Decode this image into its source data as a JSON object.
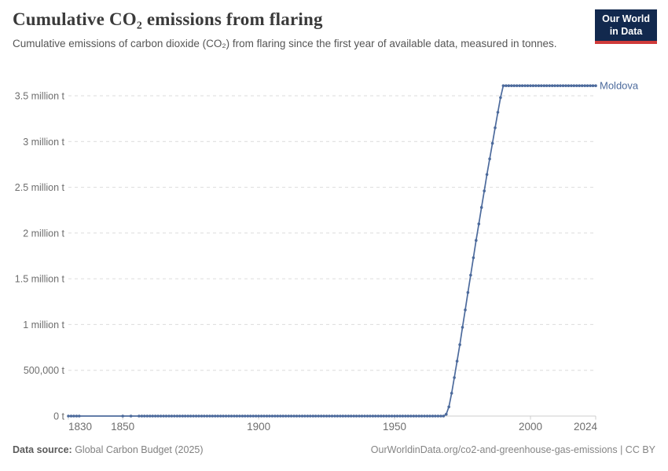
{
  "header": {
    "title": "Cumulative CO₂ emissions from flaring",
    "subtitle": "Cumulative emissions of carbon dioxide (CO₂) from flaring since the first year of available data, measured in tonnes.",
    "logo": {
      "line1": "Our World",
      "line2": "in Data",
      "bg_color": "#12294e",
      "accent_color": "#cf3a3a"
    }
  },
  "chart_data": {
    "type": "line",
    "title": "Cumulative CO₂ emissions from flaring",
    "unit": "t",
    "grid": "on",
    "legend_position": "end-of-line-label",
    "xlim": [
      1830,
      2024
    ],
    "ylim": [
      0,
      3650000
    ],
    "x_ticks": [
      1830,
      1850,
      1900,
      1950,
      2000,
      2024
    ],
    "y_ticks": [
      {
        "value": 0,
        "label": "0 t"
      },
      {
        "value": 500000,
        "label": "500,000 t"
      },
      {
        "value": 1000000,
        "label": "1 million t"
      },
      {
        "value": 1500000,
        "label": "1.5 million t"
      },
      {
        "value": 2000000,
        "label": "2 million t"
      },
      {
        "value": 2500000,
        "label": "2.5 million t"
      },
      {
        "value": 3000000,
        "label": "3 million t"
      },
      {
        "value": 3500000,
        "label": "3.5 million t"
      }
    ],
    "series": [
      {
        "name": "Moldova",
        "color": "#4c6a9c",
        "breakpoints": [
          [
            1830,
            0
          ],
          [
            1968,
            0
          ],
          [
            1969,
            20000
          ],
          [
            1970,
            100000
          ],
          [
            1971,
            250000
          ],
          [
            1972,
            420000
          ],
          [
            1973,
            600000
          ],
          [
            1974,
            780000
          ],
          [
            1975,
            970000
          ],
          [
            1976,
            1160000
          ],
          [
            1977,
            1350000
          ],
          [
            1978,
            1540000
          ],
          [
            1979,
            1730000
          ],
          [
            1980,
            1920000
          ],
          [
            1981,
            2100000
          ],
          [
            1982,
            2280000
          ],
          [
            1983,
            2460000
          ],
          [
            1984,
            2640000
          ],
          [
            1985,
            2810000
          ],
          [
            1986,
            2980000
          ],
          [
            1987,
            3150000
          ],
          [
            1988,
            3320000
          ],
          [
            1989,
            3480000
          ],
          [
            1990,
            3610000
          ],
          [
            2024,
            3610000
          ]
        ],
        "marker_year_ranges": [
          [
            1830,
            1834
          ],
          [
            1850,
            1850
          ],
          [
            1853,
            1853
          ],
          [
            1856,
            2024
          ]
        ]
      }
    ],
    "colors": {
      "gridline": "#dcdcdc",
      "axis": "#cccccc",
      "tick_text": "#6e6e6e"
    }
  },
  "footer": {
    "source_label": "Data source:",
    "source_value": " Global Carbon Budget (2025)",
    "url": "OurWorldinData.org/co2-and-greenhouse-gas-emissions",
    "license": " | CC BY"
  }
}
